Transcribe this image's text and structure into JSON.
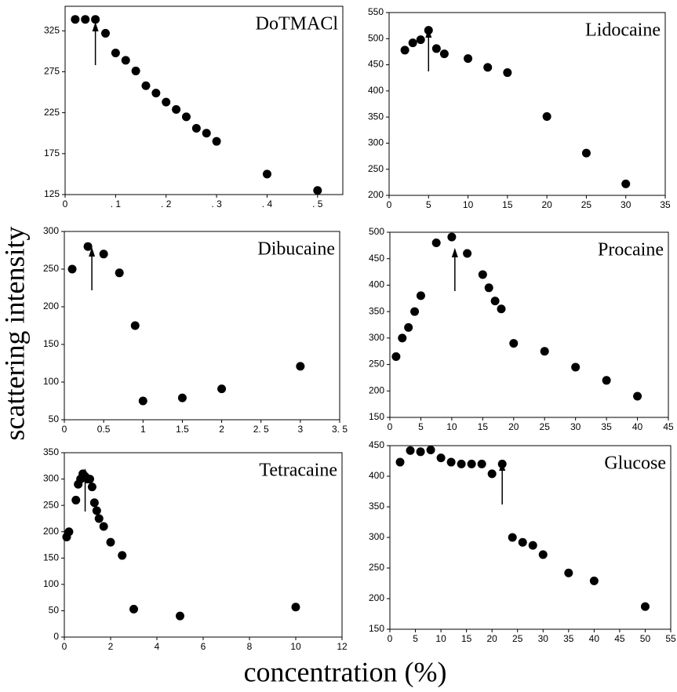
{
  "y_label": "scattering intensity",
  "x_label": "concentration (%)",
  "chart_data": [
    {
      "type": "scatter",
      "title": "DoTMACl",
      "color": "#000000",
      "x": [
        0.02,
        0.04,
        0.06,
        0.08,
        0.1,
        0.12,
        0.14,
        0.16,
        0.18,
        0.2,
        0.22,
        0.24,
        0.26,
        0.28,
        0.3,
        0.4,
        0.5
      ],
      "values": [
        339,
        339,
        339,
        322,
        298,
        289,
        276,
        258,
        249,
        238,
        229,
        220,
        206,
        200,
        190,
        150,
        130
      ],
      "arrow_x": 0.06,
      "xlim": [
        0,
        0.55
      ],
      "xticks": [
        0,
        {
          "value": 0.1,
          "label": ". 1"
        },
        {
          "value": 0.2,
          "label": ". 2"
        },
        {
          "value": 0.3,
          "label": ". 3"
        },
        {
          "value": 0.4,
          "label": ". 4"
        },
        {
          "value": 0.5,
          "label": ". 5"
        }
      ],
      "ylim": [
        125,
        355
      ],
      "yticks": [
        125,
        175,
        225,
        275,
        325
      ]
    },
    {
      "type": "scatter",
      "title": "Lidocaine",
      "color": "#000000",
      "x": [
        2,
        3,
        4,
        5,
        6,
        7,
        10,
        12.5,
        15,
        20,
        25,
        30
      ],
      "values": [
        478,
        492,
        498,
        516,
        481,
        471,
        462,
        445,
        435,
        351,
        281,
        222
      ],
      "arrow_x": 5,
      "xlim": [
        0,
        35
      ],
      "xticks": [
        0,
        5,
        10,
        15,
        20,
        25,
        30,
        35
      ],
      "ylim": [
        200,
        550
      ],
      "yticks": [
        200,
        250,
        300,
        350,
        400,
        450,
        500,
        550
      ]
    },
    {
      "type": "scatter",
      "title": "Dibucaine",
      "color": "#000000",
      "x": [
        0.1,
        0.3,
        0.5,
        0.7,
        0.9,
        1,
        1.5,
        2,
        3
      ],
      "values": [
        250,
        280,
        270,
        245,
        175,
        75,
        79,
        91,
        121
      ],
      "arrow_x": 0.35,
      "xlim": [
        0,
        3.5
      ],
      "xticks": [
        0,
        0.5,
        1,
        1.5,
        2,
        {
          "value": 2.5,
          "label": "2. 5"
        },
        3,
        {
          "value": 3.5,
          "label": "3. 5"
        }
      ],
      "ylim": [
        50,
        300
      ],
      "yticks": [
        50,
        100,
        150,
        200,
        250,
        300
      ]
    },
    {
      "type": "scatter",
      "title": "Procaine",
      "color": "#000000",
      "x": [
        1,
        2,
        3,
        4,
        5,
        7.5,
        10,
        12.5,
        15,
        16,
        17,
        18,
        20,
        25,
        30,
        35,
        40
      ],
      "values": [
        265,
        300,
        320,
        350,
        380,
        480,
        491,
        460,
        420,
        395,
        370,
        355,
        290,
        275,
        245,
        220,
        190
      ],
      "arrow_x": 10.5,
      "xlim": [
        0,
        45
      ],
      "xticks": [
        0,
        5,
        10,
        15,
        20,
        25,
        30,
        35,
        40,
        45
      ],
      "ylim": [
        150,
        500
      ],
      "yticks": [
        150,
        200,
        250,
        300,
        350,
        400,
        450,
        500
      ]
    },
    {
      "type": "scatter",
      "title": "Tetracaine",
      "color": "#000000",
      "x": [
        0.1,
        0.2,
        0.5,
        0.6,
        0.7,
        0.8,
        0.9,
        1,
        1.1,
        1.2,
        1.3,
        1.4,
        1.5,
        1.7,
        2,
        2.5,
        3,
        5,
        10
      ],
      "values": [
        190,
        200,
        260,
        290,
        300,
        310,
        305,
        300,
        300,
        285,
        255,
        240,
        225,
        210,
        180,
        155,
        53,
        40,
        57
      ],
      "arrow_x": 0.9,
      "xlim": [
        0,
        12
      ],
      "xticks": [
        0,
        2,
        4,
        6,
        8,
        10,
        12
      ],
      "ylim": [
        0,
        350
      ],
      "yticks": [
        0,
        50,
        100,
        150,
        200,
        250,
        300,
        350
      ]
    },
    {
      "type": "scatter",
      "title": "Glucose",
      "color": "#000000",
      "x": [
        2,
        4,
        6,
        8,
        10,
        12,
        14,
        16,
        18,
        20,
        22,
        24,
        26,
        28,
        30,
        35,
        40,
        50
      ],
      "values": [
        423,
        442,
        440,
        443,
        430,
        423,
        420,
        420,
        420,
        404,
        420,
        300,
        292,
        287,
        272,
        242,
        229,
        187
      ],
      "arrow_x": 22,
      "xlim": [
        0,
        55
      ],
      "xticks": [
        0,
        5,
        10,
        15,
        20,
        25,
        30,
        35,
        40,
        45,
        50,
        55
      ],
      "ylim": [
        150,
        450
      ],
      "yticks": [
        150,
        200,
        250,
        300,
        350,
        400,
        450
      ]
    }
  ]
}
